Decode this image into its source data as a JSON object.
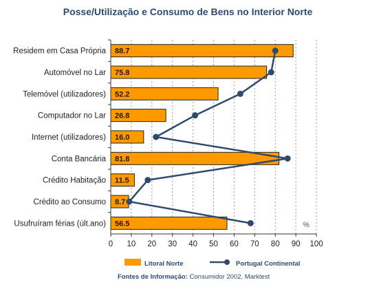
{
  "chart_data": {
    "type": "bar",
    "title": "Posse/Utilização e Consumo de Bens no Interior Norte",
    "unit_label": "%",
    "xlim": [
      0,
      100
    ],
    "x_ticks": [
      0,
      10,
      20,
      30,
      40,
      50,
      60,
      70,
      80,
      90,
      100
    ],
    "grid": "vertical dashed",
    "categories": [
      "Residem em Casa Própria",
      "Automóvel no Lar",
      "Telemóvel (utilizadores)",
      "Computador no Lar",
      "Internet (utilizadores)",
      "Conta Bancária",
      "Crédito Habitação",
      "Crédito ao Consumo",
      "Usufruíram férias (últ.ano)"
    ],
    "series": [
      {
        "name": "Litoral Norte",
        "kind": "bar",
        "color": "#FF9900",
        "values": [
          88.7,
          75.8,
          52.2,
          26.8,
          16.0,
          81.8,
          11.5,
          8.7,
          56.5
        ],
        "labels": [
          "88.7",
          "75.8",
          "52.2",
          "26.8",
          "16.0",
          "81.8",
          "11.5",
          "8.7",
          "56.5"
        ]
      },
      {
        "name": "Portugal Continental",
        "kind": "line",
        "color": "#2E4A6E",
        "values": [
          80,
          78,
          63,
          41,
          22,
          86,
          18,
          9,
          68
        ]
      }
    ],
    "legend_position": "bottom",
    "source_bold": "Fontes de Informação:",
    "source_text": " Consumidor 2002, Marktest"
  }
}
